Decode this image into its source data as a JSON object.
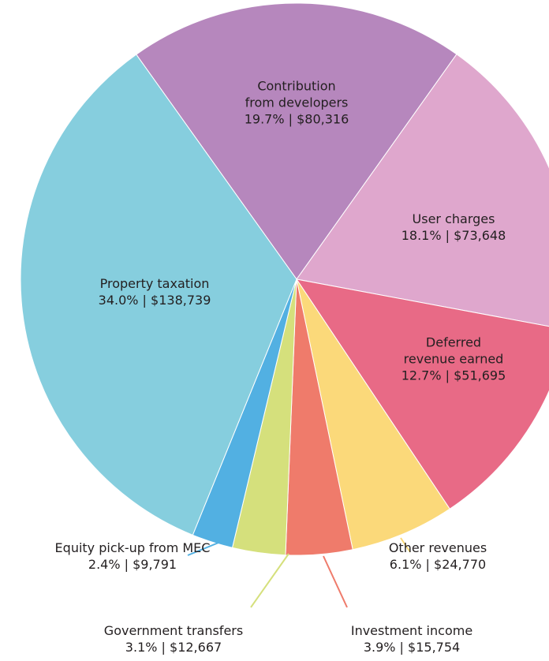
{
  "chart_data": {
    "type": "pie",
    "categories": [
      "Contribution\nfrom developers",
      "User charges",
      "Deferred\nrevenue earned",
      "Other revenues",
      "Investment income",
      "Government transfers",
      "Equity pick-up from MEC",
      "Property taxation"
    ],
    "values": [
      19.7,
      18.1,
      12.7,
      6.1,
      3.9,
      3.1,
      2.4,
      34.0
    ],
    "value_labels": [
      "19.7% | $80,316",
      "18.1% | $73,648",
      "12.7% | $51,695",
      "6.1% | $24,770",
      "3.9% | $15,754",
      "3.1% | $12,667",
      "2.4% | $9,791",
      "34.0% | $138,739"
    ],
    "colors": [
      "#b687bd",
      "#dfa7cd",
      "#e86a86",
      "#fbd97a",
      "#ef7b6b",
      "#d5e07c",
      "#52b0e2",
      "#86cede"
    ]
  }
}
